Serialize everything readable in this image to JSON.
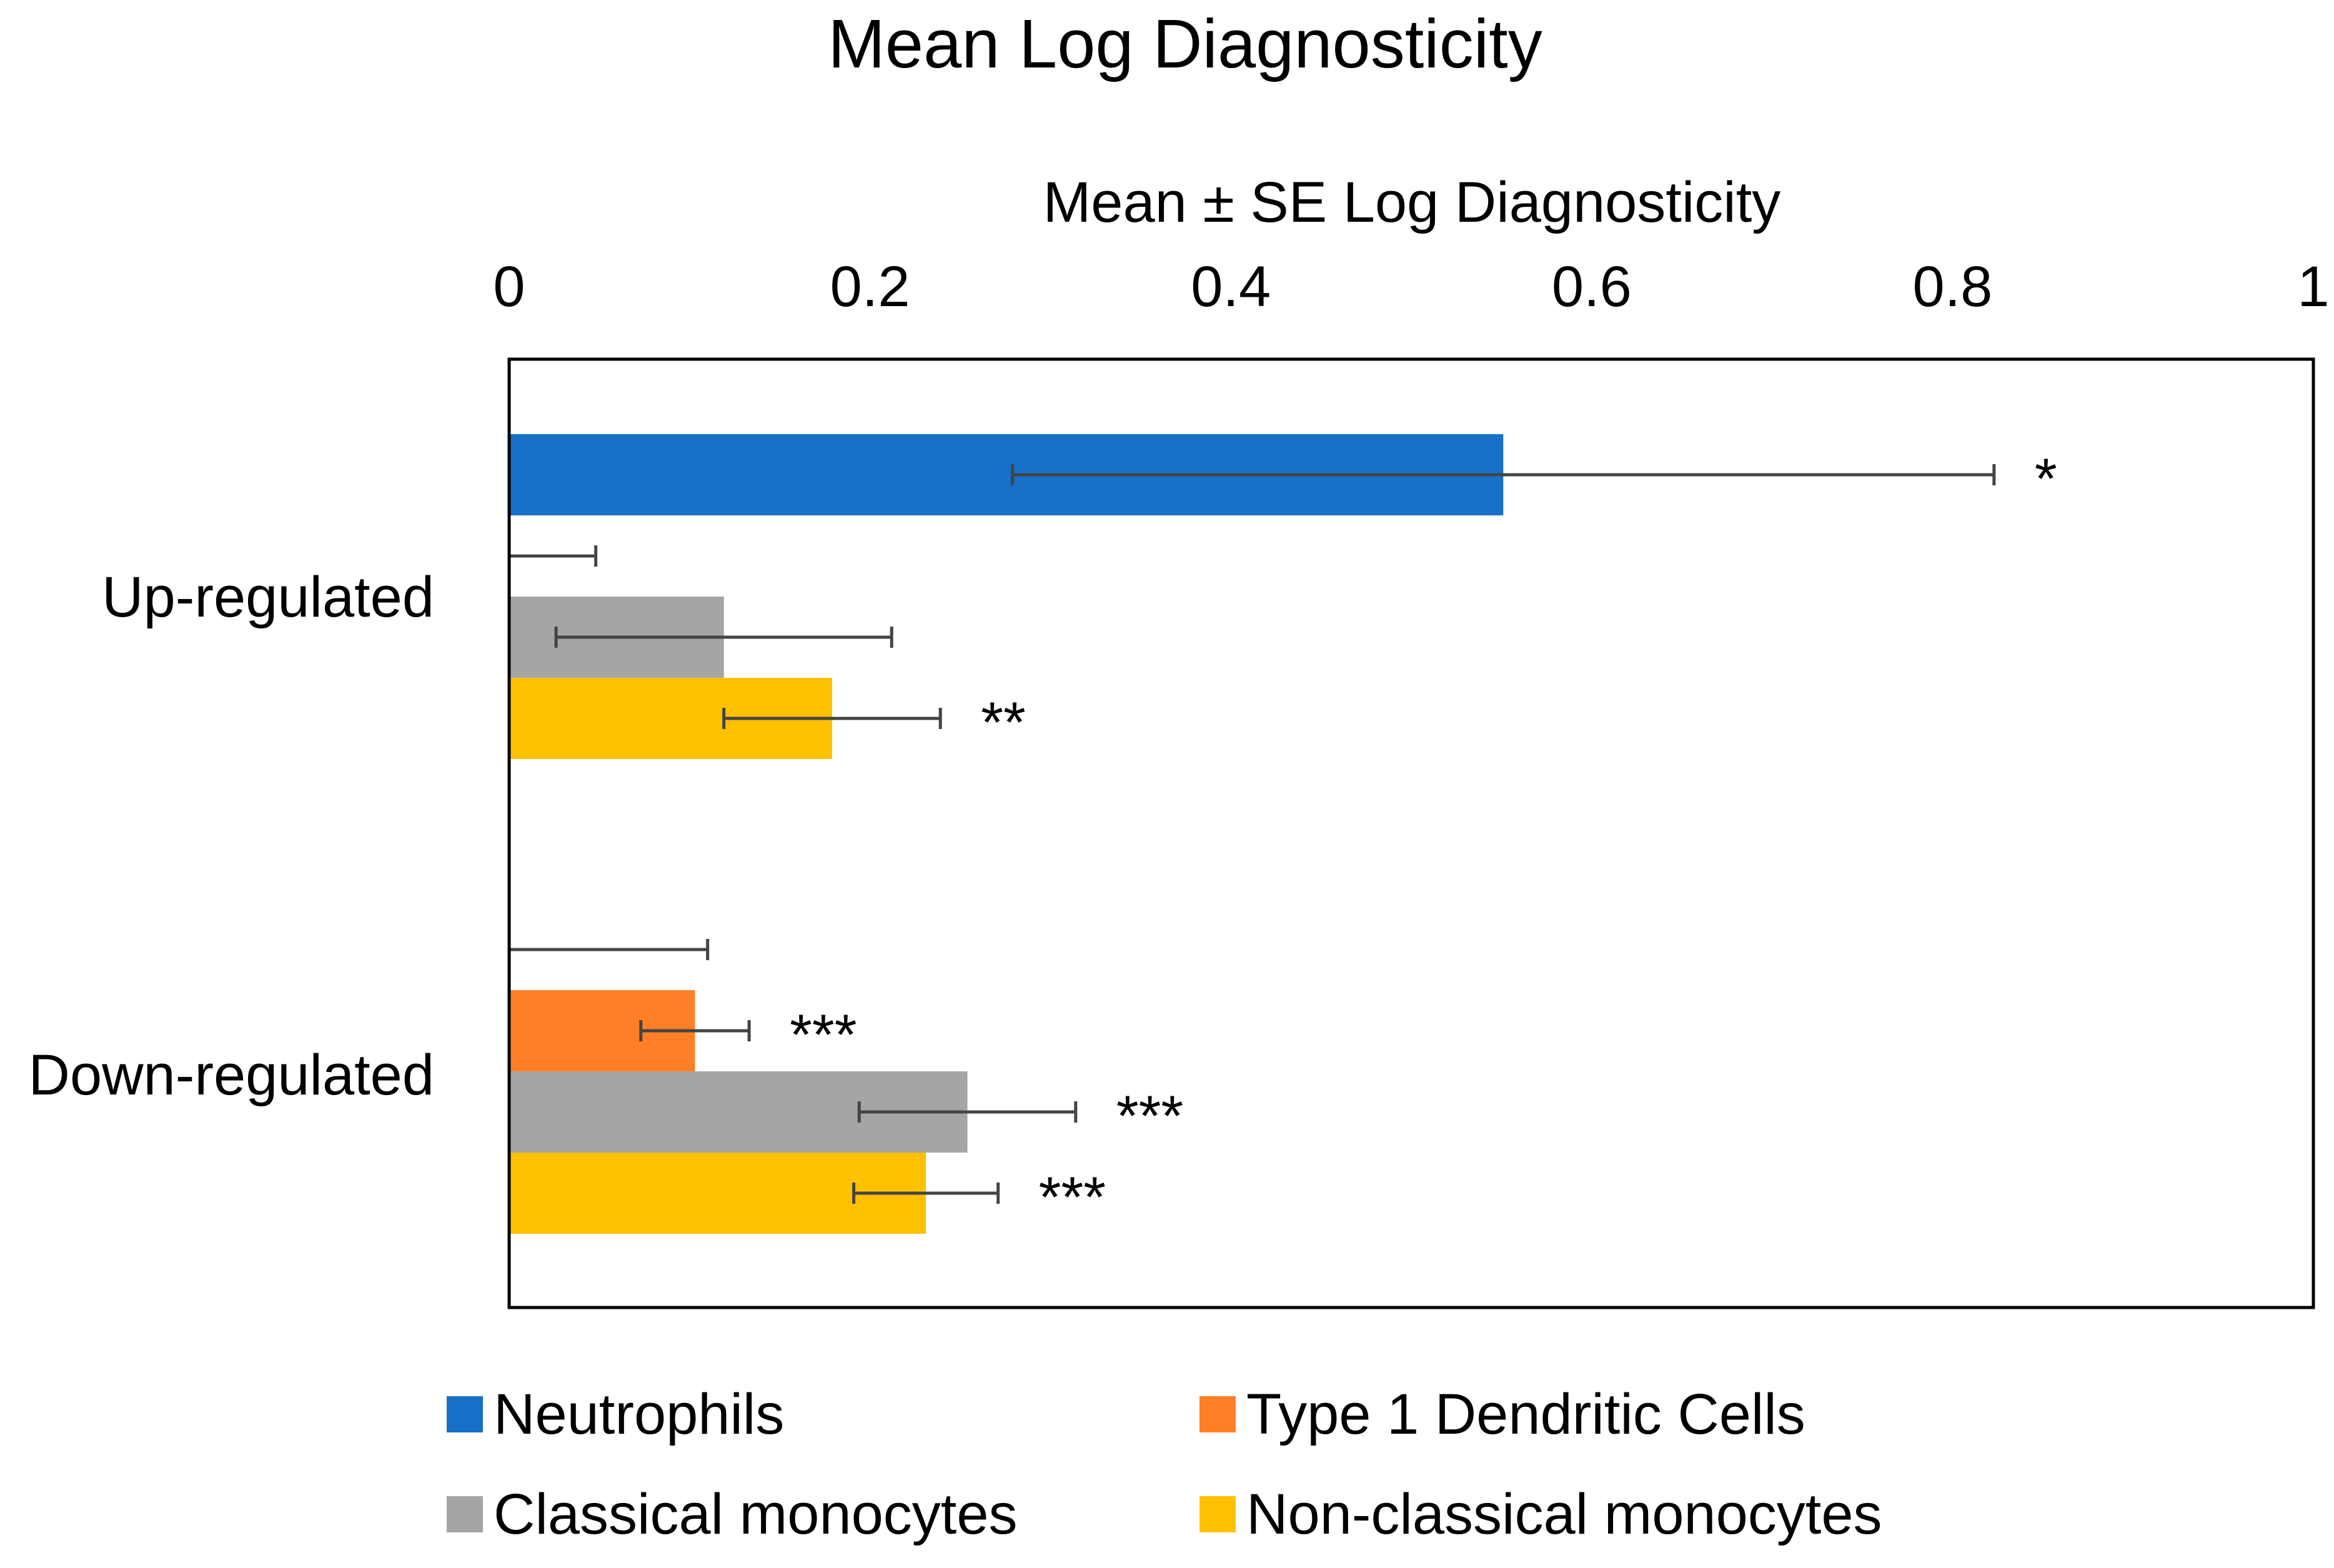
{
  "chart_data": {
    "type": "bar",
    "orientation": "horizontal",
    "title": "Mean Log Diagnosticity",
    "xlabel": "Mean ± SE Log Diagnosticity",
    "ylabel": "",
    "xlim": [
      0,
      1
    ],
    "x_ticks": [
      "0",
      "0.2",
      "0.4",
      "0.6",
      "0.8",
      "1"
    ],
    "x_tick_values": [
      0,
      0.2,
      0.4,
      0.6,
      0.8,
      1
    ],
    "axis_position": "top",
    "grid": false,
    "legend_position": "bottom",
    "categories": [
      "Up-regulated",
      "Down-regulated"
    ],
    "series": [
      {
        "name": "Neutrophils",
        "color": "#1870C8",
        "values": [
          0.551,
          0.0
        ],
        "error": [
          0.272,
          0.11
        ],
        "significance": [
          "*",
          ""
        ]
      },
      {
        "name": "Type 1 Dendritic Cells",
        "color": "#FF7F27",
        "values": [
          0.0,
          0.103
        ],
        "error": [
          0.048,
          0.03
        ],
        "significance": [
          "",
          "***"
        ]
      },
      {
        "name": "Classical monocytes",
        "color": "#A5A5A5",
        "values": [
          0.119,
          0.254
        ],
        "error": [
          0.093,
          0.06
        ],
        "significance": [
          "",
          "***"
        ]
      },
      {
        "name": "Non-classical monocytes",
        "color": "#FFC000",
        "values": [
          0.179,
          0.231
        ],
        "error": [
          0.06,
          0.04
        ],
        "significance": [
          "**",
          "***"
        ]
      }
    ]
  }
}
